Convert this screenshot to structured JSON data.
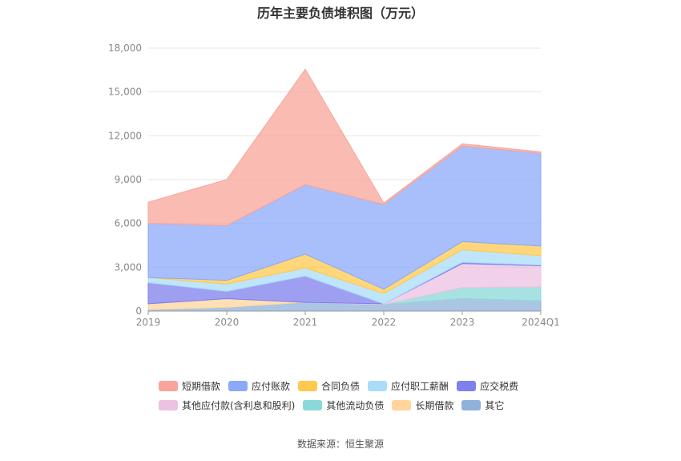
{
  "chart_data": {
    "type": "area",
    "stacked": true,
    "title": "历年主要负债堆积图（万元）",
    "categories": [
      "2019",
      "2020",
      "2021",
      "2022",
      "2023",
      "2024Q1"
    ],
    "ylim": [
      0,
      18000
    ],
    "yticks": [
      "0",
      "3,000",
      "6,000",
      "9,000",
      "12,000",
      "15,000",
      "18,000"
    ],
    "yticks_values": [
      0,
      3000,
      6000,
      9000,
      12000,
      15000,
      18000
    ],
    "grid": true,
    "legend_position": "bottom",
    "series": [
      {
        "name": "其它",
        "color": "#8fb1dc",
        "values": [
          100,
          250,
          600,
          450,
          850,
          700
        ]
      },
      {
        "name": "长期借款",
        "color": "#ffd59b",
        "values": [
          400,
          600,
          0,
          0,
          0,
          0
        ]
      },
      {
        "name": "其他流动负债",
        "color": "#8ad8d8",
        "values": [
          0,
          0,
          0,
          0,
          750,
          950
        ]
      },
      {
        "name": "其他应付款(含利息和股利)",
        "color": "#ecc2e2",
        "values": [
          0,
          0,
          0,
          50,
          1650,
          1450
        ]
      },
      {
        "name": "应交税费",
        "color": "#7f7fee",
        "values": [
          1450,
          500,
          1800,
          0,
          100,
          50
        ]
      },
      {
        "name": "应付职工薪酬",
        "color": "#a9dcf8",
        "values": [
          350,
          500,
          550,
          700,
          850,
          650
        ]
      },
      {
        "name": "合同负债",
        "color": "#ffc94d",
        "values": [
          0,
          250,
          950,
          300,
          550,
          650
        ]
      },
      {
        "name": "应付账款",
        "color": "#8ba9f9",
        "values": [
          3700,
          3750,
          4750,
          5800,
          6550,
          6350
        ]
      },
      {
        "name": "短期借款",
        "color": "#f8a49a",
        "values": [
          1450,
          3150,
          7900,
          100,
          150,
          100
        ]
      }
    ],
    "source": "数据来源：恒生聚源"
  },
  "legend": {
    "rows": [
      [
        "短期借款",
        "应付账款",
        "合同负债",
        "应付职工薪酬",
        "应交税费"
      ],
      [
        "其他应付款(含利息和股利)",
        "其他流动负债",
        "长期借款",
        "其它"
      ]
    ]
  }
}
